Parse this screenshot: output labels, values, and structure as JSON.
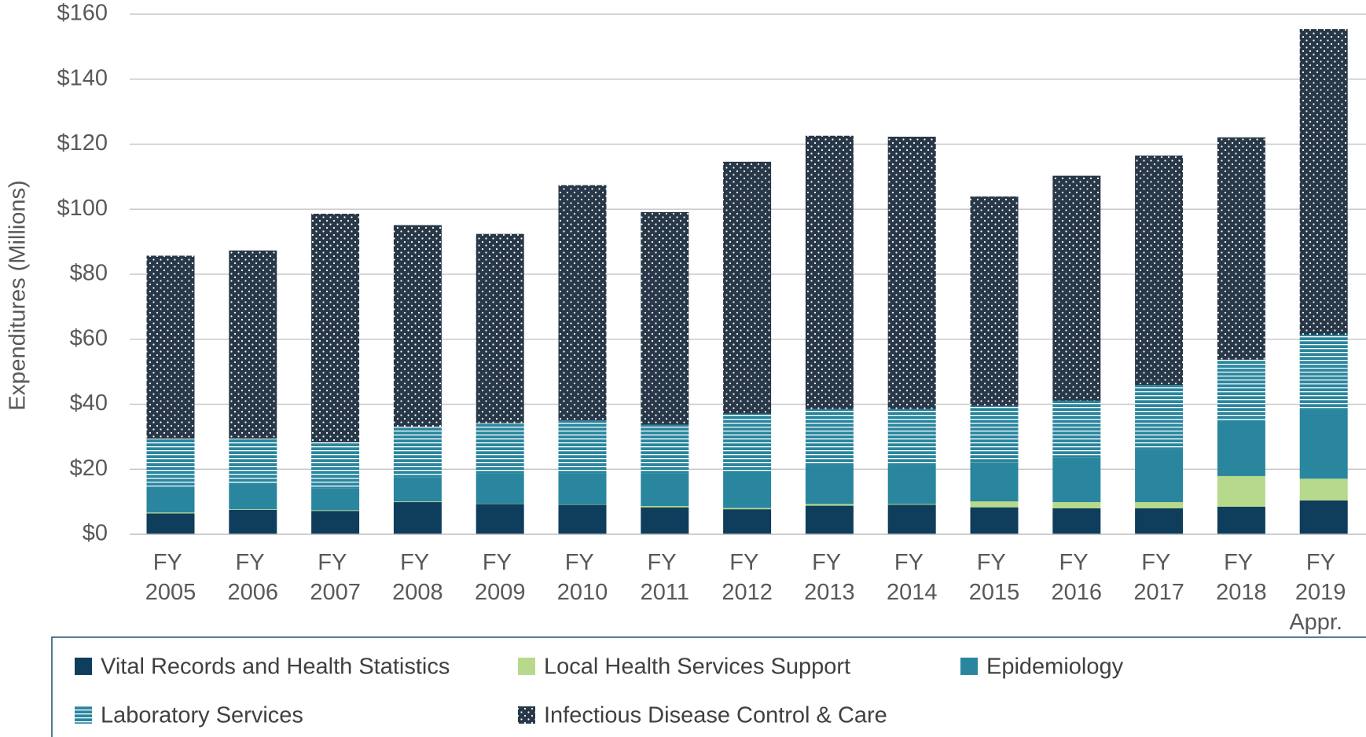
{
  "chart_data": {
    "type": "stacked_bar",
    "y_label": "Expenditures (Millions)",
    "categories": [
      "FY 2005",
      "FY 2006",
      "FY 2007",
      "FY 2008",
      "FY 2009",
      "FY 2010",
      "FY 2011",
      "FY 2012",
      "FY 2013",
      "FY 2014",
      "FY 2015",
      "FY 2016",
      "FY 2017",
      "FY 2018",
      "FY 2019 Appr."
    ],
    "series": [
      {
        "name": "Vital Records and Health Statistics",
        "color": "#0f3d5c",
        "pattern": "solid",
        "values": [
          6.4,
          7.5,
          7.2,
          9.9,
          9.3,
          9.1,
          8.3,
          7.7,
          8.8,
          9.1,
          8.3,
          8.0,
          8.0,
          8.5,
          10.4
        ]
      },
      {
        "name": "Local Health Services Support",
        "color": "#b7d98b",
        "pattern": "solid",
        "values": [
          0.3,
          0.2,
          0.2,
          0.2,
          0.1,
          0.1,
          0.4,
          0.4,
          0.5,
          0.2,
          1.8,
          1.9,
          1.9,
          9.4,
          6.7
        ]
      },
      {
        "name": "Epidemiology",
        "color": "#2a869e",
        "pattern": "solid",
        "values": [
          8.0,
          8.1,
          6.8,
          7.5,
          9.3,
          9.5,
          10.0,
          11.4,
          12.1,
          12.1,
          12.1,
          13.6,
          16.3,
          17.1,
          21.1
        ]
      },
      {
        "name": "Laboratory Services",
        "color": "#2a869e",
        "pattern": "horizontal",
        "values": [
          14.7,
          13.6,
          14.1,
          15.5,
          15.5,
          16.3,
          15.0,
          17.6,
          17.1,
          17.1,
          17.3,
          17.6,
          19.7,
          18.7,
          23.2
        ]
      },
      {
        "name": "Infectious Disease Control & Care",
        "color": "#283848",
        "pattern": "dots",
        "values": [
          56.3,
          57.9,
          70.3,
          62.0,
          58.2,
          72.4,
          65.4,
          77.5,
          84.1,
          83.8,
          64.4,
          69.2,
          70.6,
          68.4,
          94.0
        ]
      }
    ],
    "ylim": [
      0,
      160
    ],
    "yticks": [
      {
        "value": 0,
        "label": "$0"
      },
      {
        "value": 20,
        "label": "$20"
      },
      {
        "value": 40,
        "label": "$40"
      },
      {
        "value": 60,
        "label": "$60"
      },
      {
        "value": 80,
        "label": "$80"
      },
      {
        "value": 100,
        "label": "$100"
      },
      {
        "value": 120,
        "label": "$120"
      },
      {
        "value": 140,
        "label": "$140"
      },
      {
        "value": 160,
        "label": "$160"
      }
    ],
    "grid": true
  }
}
